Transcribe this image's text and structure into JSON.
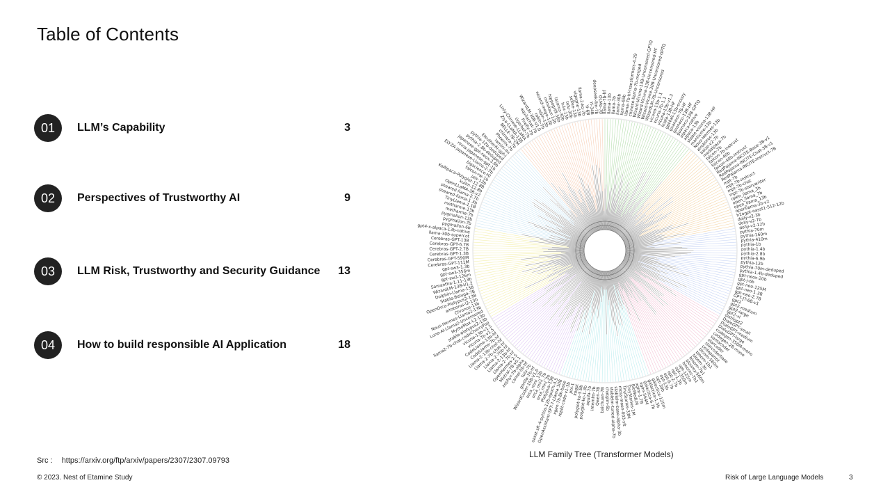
{
  "slide": {
    "title": "Table of Contents",
    "toc": [
      {
        "number": "01",
        "label": "LLM’s Capability",
        "page": "3"
      },
      {
        "number": "02",
        "label": "Perspectives of Trustworthy AI",
        "page": "9"
      },
      {
        "number": "03",
        "label": "LLM Risk, Trustworthy and Security Guidance",
        "page": "13"
      },
      {
        "number": "04",
        "label": "How to build responsible AI Application",
        "page": "18"
      }
    ],
    "figure_caption": "LLM  Family Tree (Transformer Models)",
    "source_label": "Src :",
    "source_url": "https://arxiv.org/ftp/arxiv/papers/2307/2307.09793",
    "copyright": "© 2023. Nest of Etamine Study",
    "deck_title": "Risk of Large Language Models",
    "page_number": "3"
  },
  "tree": {
    "branch_colors": [
      "#b8e0b0",
      "#f5d6a8",
      "#c9d6f5",
      "#f5c6d8",
      "#bfeef0",
      "#e0c8f5",
      "#f5f0b0",
      "#cfe8f5",
      "#f8d0b8"
    ],
    "leaf_labels": [
      "llama-7b-hf",
      "llama-13b",
      "llama-7b",
      "llama-30b",
      "llama-65b",
      "llama-7b-hf-transformers-4.29",
      "chinese-llama-7b-merged",
      "Wizard-Vicuna-13B-Uncensored-GPTQ",
      "Wizard-Vicuna-13B-Uncensored-HF",
      "Wizard-Vicuna-30B-Uncensored-GPTQ",
      "WizardLM-7B-Uncensored",
      "vicuna-13b-1.1",
      "vicuna-7b-1.1",
      "vicuna-13b-v1.3",
      "koala-13B-HF",
      "gpt4all-13b-snoozy",
      "guanaco-7B-HF",
      "guanaco-13B-HF",
      "guanaco-33B-GPTQ",
      "alpaca-native",
      "alpaca-13b",
      "stable-vicuna-13B-HF",
      "manticore-13b",
      "Nous-Hermes-13b",
      "airoboros-13b",
      "baize-v2-7b",
      "medalpaca-7b",
      "falcon-7b",
      "falcon-7b-instruct",
      "falcon-40b",
      "falcon-40b-instruct",
      "RedPajama-INCITE-Base-3B-v1",
      "RedPajama-INCITE-Chat-3B-v1",
      "RedPajama-INCITE-Instruct-7B",
      "mpt-7b",
      "mpt-7b-instruct",
      "mpt-7b-chat",
      "mpt-7b-storywriter",
      "open_llama_3b",
      "open_llama_7b",
      "open_llama_13b",
      "openllama-3b-v2",
      "h2ogpt-oasst1-512-12b",
      "dolly-v2-3b",
      "dolly-v2-7b",
      "dolly-v2-12b",
      "pythia-70m",
      "pythia-160m",
      "pythia-410m",
      "pythia-1b",
      "pythia-1.4b",
      "pythia-2.8b",
      "pythia-6.9b",
      "pythia-12b",
      "pythia-70m-deduped",
      "pythia-1.4b-deduped",
      "gpt-neox-20b",
      "gpt-j-6b",
      "gpt-neo-125M",
      "gpt-neo-1.3B",
      "gpt-neo-2.7B",
      "GPT-JT-6B-v1",
      "gpt2",
      "gpt2-medium",
      "gpt2-large",
      "gpt2-xl",
      "distilgpt2",
      "DialoGPT-small",
      "DialoGPT-medium",
      "DialoGPT-large",
      "codegen-350M-mono",
      "codegen-2B-mono",
      "santacoder",
      "starcoder",
      "starcoderbase",
      "codeparrot",
      "bloom-560m",
      "bloom-1b1",
      "bloom-3b",
      "bloom-7b1",
      "bloomz-560m",
      "bloomz-7b1",
      "opt-125m",
      "opt-350m",
      "opt-1.3b",
      "opt-2.7b",
      "opt-6.7b",
      "opt-13b",
      "opt-30b",
      "galactica-125m",
      "galactica-1.3b",
      "galactica-6.7b",
      "xglm-564M",
      "xglm-1.7B",
      "BioMedLM",
      "TinyStories-1M",
      "TinyStories-33M",
      "moss-moon-003-sft",
      "stablelm-base-alpha-3b",
      "stablelm-tuned-alpha-7b",
      "chatglm-6b",
      "baichuan-7B",
      "Qwen-7B",
      "internlm-7b",
      "aquila-7b",
      "polyglot-ko-1.3b",
      "polyglot-ko-5.8b",
      "kogpt",
      "phi-1",
      "replit-code-v1-3b",
      "xgen-7b-8k-base",
      "OpenAssistant-SFT-7-Llama-30B",
      "oasst-sft-4-pythia-12b-epoch-3.5",
      "Platypus-13B",
      "orca_mini_3b",
      "orca_mini_7b",
      "orca_mini_13b",
      "WizardCoder-15B-V1.0",
      "gorilla-7b-hf",
      "tulu-7b",
      "camel-5b-hf",
      "zephyr-7b-alpha",
      "Mistral-7B-v0.1",
      "OpenHermes-2.5",
      "Llama-2-7b-hf",
      "Llama-2-13b-hf",
      "Llama-2-70b-hf",
      "Llama-2-7b-chat-hf",
      "Llama-2-13b-chat-hf",
      "CodeLlama-7b-hf",
      "CodeLlama-13b-hf",
      "vicuna-7b-v1.5",
      "vicuna-13b-v1.5",
      "llama2-7b-chat-codeCherryPop",
      "stable-platypus2-13b",
      "MythoMax-L2-13b",
      "Luna-AI-Llama2-Uncensored",
      "Nous-Hermes-Llama2-13b",
      "Chronos-13b",
      "airoboros-l2-13b",
      "OpenOrca-Platypus2-13B",
      "Stable-Beluga-7B",
      "Dolphin-Llama-13B",
      "WizardLM-13B-V1.2",
      "Samantha-1.11-13b",
      "gpt-sw3-126m",
      "gpt-sw3-356m",
      "gpt-sw3-1.3b",
      "Cerebras-GPT-111M",
      "Cerebras-GPT-590M",
      "Cerebras-GPT-1.3B",
      "Cerebras-GPT-2.7B",
      "Cerebras-GPT-6.7B",
      "Cerebras-GPT-13B",
      "llama-30b-supercot",
      "gpt4-x-alpaca-13b-native",
      "pygmalion-6b",
      "pygmalion-7b",
      "pygmalion-13b",
      "metharme-7b",
      "metharme-13b",
      "TinyLlama-1.1B",
      "sheared-llama-1.3b",
      "sheared-llama-2.7b",
      "OpenLLaMA-3B-v2",
      "kullm-12.8b",
      "KoAlpaca-Polyglot-12.8B",
      "jais-13b",
      "falcon-rw-1b",
      "bigscience-t0",
      "ELYZA-japanese-Llama-2-7b",
      "rinna-japanese-gpt-1b",
      "japanese-gpt-neox-3.6b",
      "pythia-2.8b-deduped",
      "pythia-12b-deduped",
      "EleutherAI-gpt-j",
      "lamini-lm",
      "Phoenix-7b",
      "chimera-7b",
      "BELLE-7B-2M",
      "Ziya-LLaMA-13B",
      "Linly-Chinese-LLaMA",
      "tigerbot-7b",
      "Firefly-7b",
      "aquilachat-7b",
      "WizardLM-30B-V1.0",
      "robin-7b",
      "robin-13b",
      "wizard-mega-13b",
      "minotaur-13b",
      "hippogriff-30b",
      "lazarus-30b",
      "tulu-13b",
      "tulu-30b",
      "selfee-13b",
      "vigogne-13b",
      "llama-2-ko-7b",
      "Yi-6B",
      "Yi-34B",
      "deepseek-llm-7b",
      "OLMo-7B"
    ]
  }
}
